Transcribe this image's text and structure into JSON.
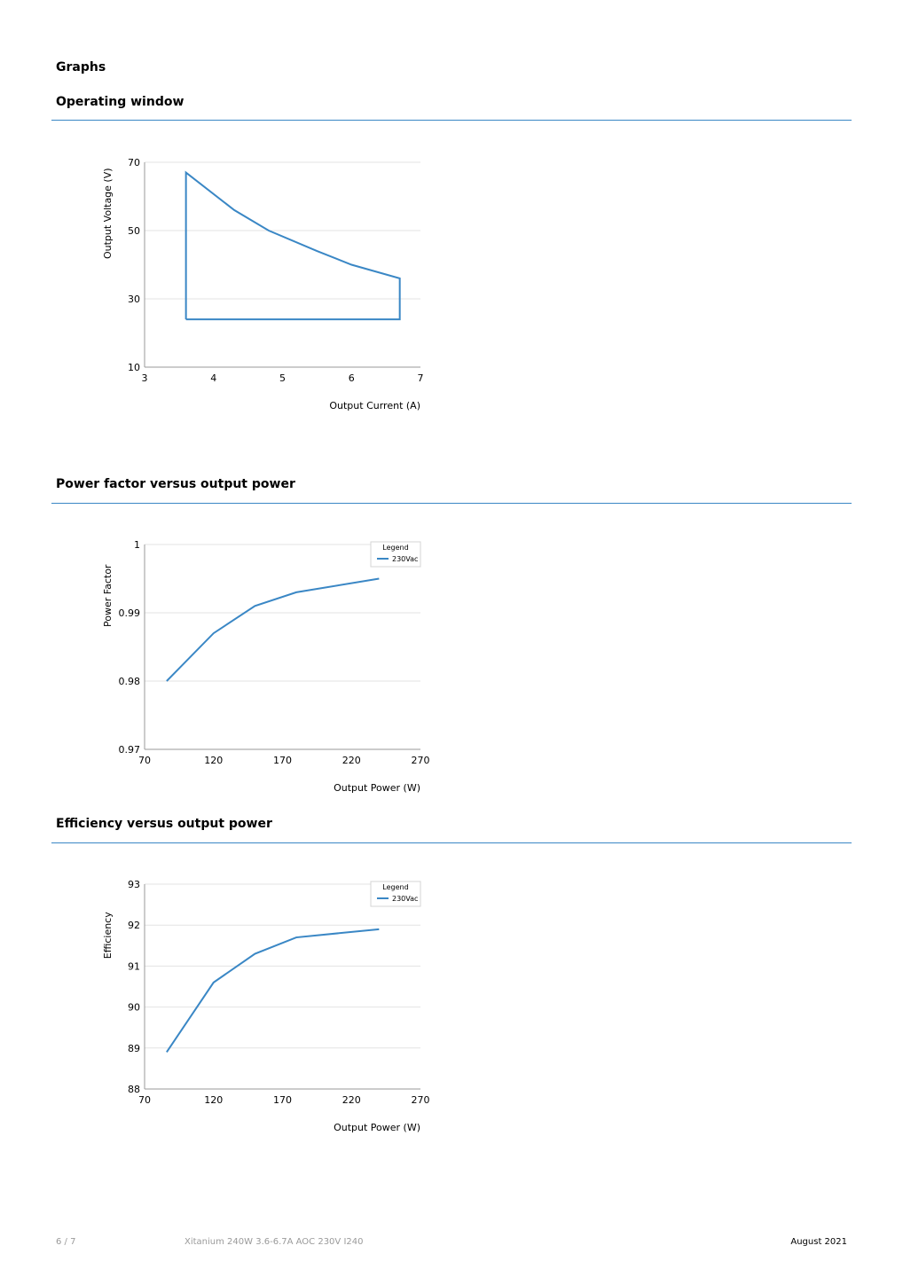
{
  "page_heading": "Graphs",
  "sections": [
    {
      "title": "Operating window"
    },
    {
      "title": "Power factor versus output power"
    },
    {
      "title": "Efficiency versus output power"
    }
  ],
  "footer": {
    "page": "6 / 7",
    "product": "Xitanium 240W 3.6-6.7A AOC 230V I240",
    "date": "August 2021"
  },
  "colors": {
    "series": "#3a87c5",
    "rule": "#3a87c5",
    "grid": "#e3e3e3"
  },
  "chart_data": [
    {
      "type": "line",
      "xlabel": "Output Current (A)",
      "ylabel": "Output Voltage (V)",
      "xlim": [
        3,
        7
      ],
      "ylim": [
        10,
        70
      ],
      "xticks": [
        3,
        4,
        5,
        6,
        7
      ],
      "yticks": [
        10,
        30,
        50,
        70
      ],
      "xtick_labels": [
        "3",
        "4",
        "5",
        "6",
        "7"
      ],
      "ytick_labels": [
        "10",
        "30",
        "50",
        "70"
      ],
      "grid": true,
      "series": [
        {
          "x": [
            3.6,
            3.6,
            4.3,
            4.8,
            5.5,
            6.0,
            6.7,
            6.7,
            3.6
          ],
          "y": [
            24,
            67,
            56,
            50,
            44,
            40,
            36,
            24,
            24
          ]
        }
      ]
    },
    {
      "type": "line",
      "xlabel": "Output Power (W)",
      "ylabel": "Power Factor",
      "xlim": [
        70,
        270
      ],
      "ylim": [
        0.97,
        1
      ],
      "xticks": [
        70,
        120,
        170,
        220,
        270
      ],
      "yticks": [
        0.97,
        0.98,
        0.99,
        1
      ],
      "xtick_labels": [
        "70",
        "120",
        "170",
        "220",
        "270"
      ],
      "ytick_labels": [
        "0.97",
        "0.98",
        "0.99",
        "1"
      ],
      "grid": true,
      "legend": {
        "title": "Legend",
        "placement": "top-right"
      },
      "series": [
        {
          "name": "230Vac",
          "x": [
            86,
            120,
            150,
            180,
            240
          ],
          "y": [
            0.98,
            0.987,
            0.991,
            0.993,
            0.995
          ]
        }
      ]
    },
    {
      "type": "line",
      "xlabel": "Output Power (W)",
      "ylabel": "Efficiency",
      "xlim": [
        70,
        270
      ],
      "ylim": [
        88,
        93
      ],
      "xticks": [
        70,
        120,
        170,
        220,
        270
      ],
      "yticks": [
        88,
        89,
        90,
        91,
        92,
        93
      ],
      "xtick_labels": [
        "70",
        "120",
        "170",
        "220",
        "270"
      ],
      "ytick_labels": [
        "88",
        "89",
        "90",
        "91",
        "92",
        "93"
      ],
      "grid": true,
      "legend": {
        "title": "Legend",
        "placement": "top-right"
      },
      "series": [
        {
          "name": "230Vac",
          "x": [
            86,
            120,
            150,
            180,
            240
          ],
          "y": [
            88.9,
            90.6,
            91.3,
            91.7,
            91.9
          ]
        }
      ]
    }
  ]
}
